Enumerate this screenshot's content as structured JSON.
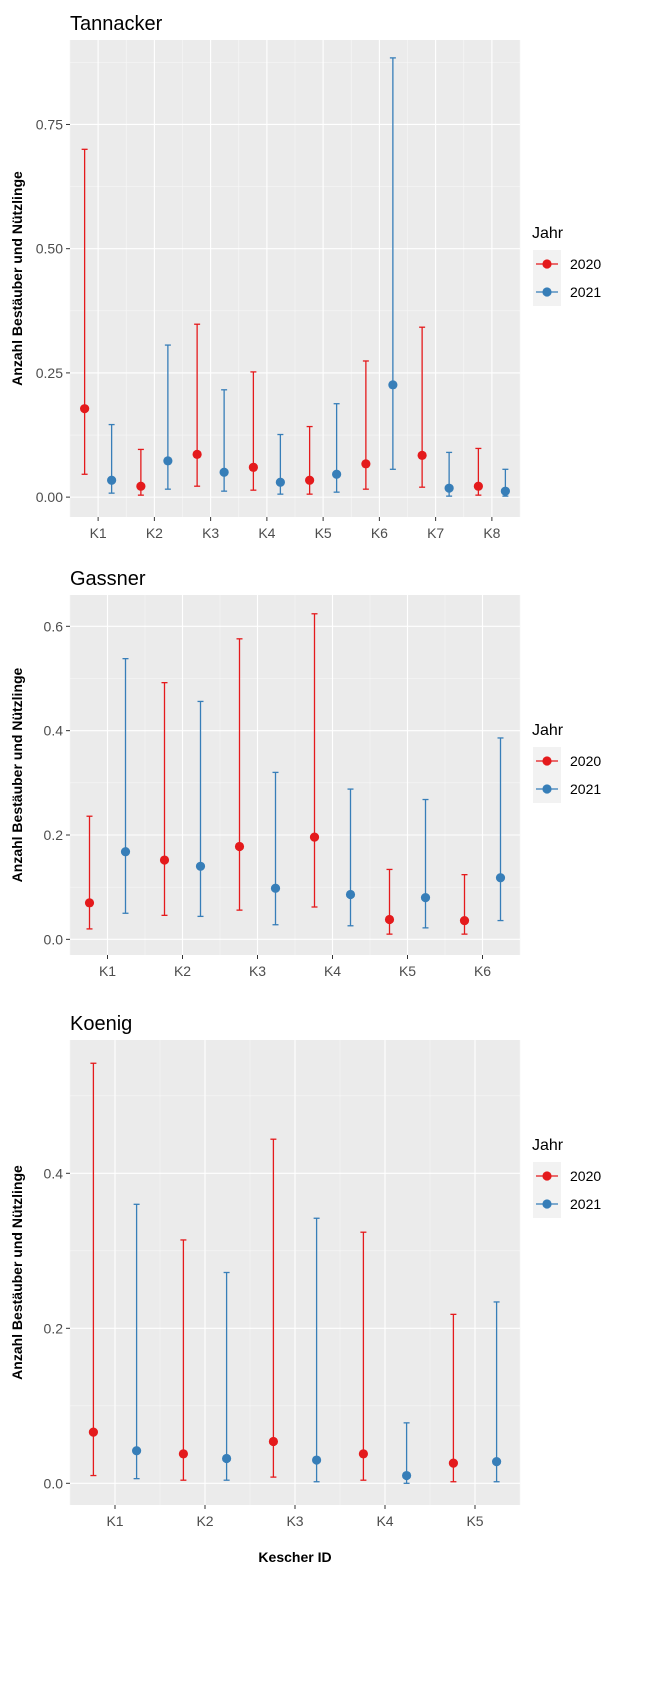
{
  "chart_data": [
    {
      "type": "scatter",
      "title": "Tannacker",
      "ylabel": "Anzahl Bestäuber und Nützlinge",
      "xlabel": "",
      "categories": [
        "K1",
        "K2",
        "K3",
        "K4",
        "K5",
        "K6",
        "K7",
        "K8"
      ],
      "ylim": [
        -0.04,
        0.92
      ],
      "yticks": [
        0.0,
        0.25,
        0.5,
        0.75
      ],
      "ytick_labels": [
        "0.00",
        "0.25",
        "0.50",
        "0.75"
      ],
      "legend": {
        "title": "Jahr",
        "placement": "right"
      },
      "series": [
        {
          "name": "2020",
          "color": "#e41a1c",
          "values": [
            0.178,
            0.022,
            0.086,
            0.06,
            0.034,
            0.067,
            0.084,
            0.022
          ],
          "lower": [
            0.046,
            0.004,
            0.022,
            0.014,
            0.006,
            0.016,
            0.02,
            0.004
          ],
          "upper": [
            0.7,
            0.096,
            0.348,
            0.252,
            0.142,
            0.274,
            0.342,
            0.098
          ]
        },
        {
          "name": "2021",
          "color": "#377eb8",
          "values": [
            0.034,
            0.073,
            0.05,
            0.03,
            0.046,
            0.226,
            0.018,
            0.012
          ],
          "lower": [
            0.008,
            0.016,
            0.012,
            0.006,
            0.01,
            0.056,
            0.002,
            0.002
          ],
          "upper": [
            0.146,
            0.306,
            0.216,
            0.126,
            0.188,
            0.884,
            0.09,
            0.056
          ]
        }
      ]
    },
    {
      "type": "scatter",
      "title": "Gassner",
      "ylabel": "Anzahl Bestäuber und Nützlinge",
      "xlabel": "",
      "categories": [
        "K1",
        "K2",
        "K3",
        "K4",
        "K5",
        "K6"
      ],
      "ylim": [
        -0.03,
        0.66
      ],
      "yticks": [
        0.0,
        0.2,
        0.4,
        0.6
      ],
      "ytick_labels": [
        "0.0",
        "0.2",
        "0.4",
        "0.6"
      ],
      "legend": {
        "title": "Jahr",
        "placement": "right"
      },
      "series": [
        {
          "name": "2020",
          "color": "#e41a1c",
          "values": [
            0.07,
            0.152,
            0.178,
            0.196,
            0.038,
            0.036
          ],
          "lower": [
            0.02,
            0.046,
            0.056,
            0.062,
            0.01,
            0.01
          ],
          "upper": [
            0.236,
            0.492,
            0.576,
            0.624,
            0.134,
            0.124
          ]
        },
        {
          "name": "2021",
          "color": "#377eb8",
          "values": [
            0.168,
            0.14,
            0.098,
            0.086,
            0.08,
            0.118
          ],
          "lower": [
            0.05,
            0.044,
            0.028,
            0.026,
            0.022,
            0.036
          ],
          "upper": [
            0.538,
            0.456,
            0.32,
            0.288,
            0.268,
            0.386
          ]
        }
      ]
    },
    {
      "type": "scatter",
      "title": "Koenig",
      "ylabel": "Anzahl Bestäuber und Nützlinge",
      "xlabel": "Kescher ID",
      "categories": [
        "K1",
        "K2",
        "K3",
        "K4",
        "K5"
      ],
      "ylim": [
        -0.028,
        0.572
      ],
      "yticks": [
        0.0,
        0.2,
        0.4
      ],
      "ytick_labels": [
        "0.0",
        "0.2",
        "0.4"
      ],
      "legend": {
        "title": "Jahr",
        "placement": "right"
      },
      "series": [
        {
          "name": "2020",
          "color": "#e41a1c",
          "values": [
            0.066,
            0.038,
            0.054,
            0.038,
            0.026
          ],
          "lower": [
            0.01,
            0.004,
            0.008,
            0.004,
            0.002
          ],
          "upper": [
            0.542,
            0.314,
            0.444,
            0.324,
            0.218
          ]
        },
        {
          "name": "2021",
          "color": "#377eb8",
          "values": [
            0.042,
            0.032,
            0.03,
            0.01,
            0.028
          ],
          "lower": [
            0.006,
            0.004,
            0.002,
            0.0,
            0.002
          ],
          "upper": [
            0.36,
            0.272,
            0.342,
            0.078,
            0.234
          ]
        }
      ]
    }
  ]
}
